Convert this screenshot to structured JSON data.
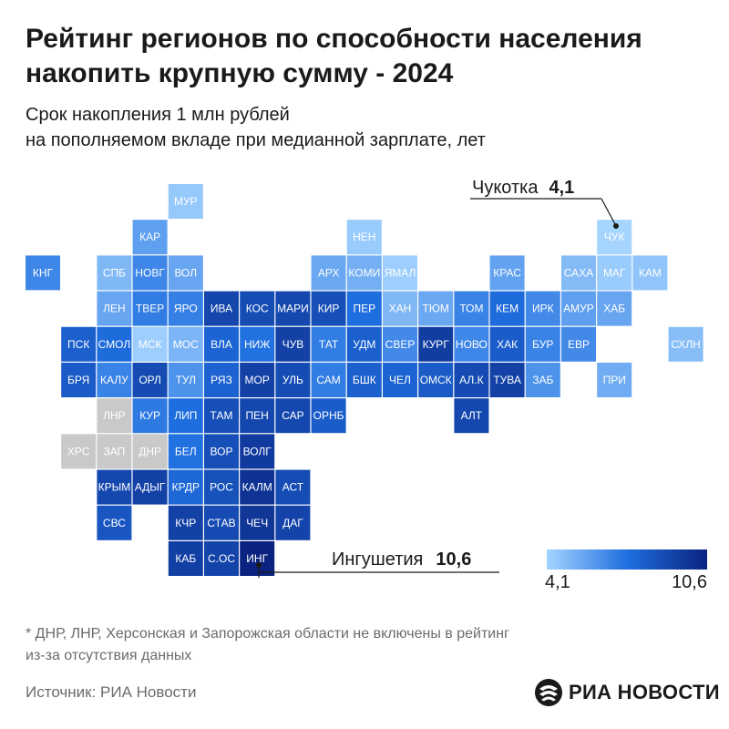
{
  "title": "Рейтинг регионов по способности населения накопить крупную сумму - 2024",
  "subtitle_line1": "Срок накопления 1 млн рублей",
  "subtitle_line2": "на пополняемом вкладе при медианной зарплате, лет",
  "footnote_line1": "* ДНР, ЛНР, Херсонская и Запорожская области не включены в рейтинг",
  "footnote_line2": "из-за отсутствия данных",
  "source": "Источник: РИА Новости",
  "logo": "РИА НОВОСТИ",
  "legend": {
    "min": "4,1",
    "max": "10,6"
  },
  "colors": {
    "low": "#a5d4ff",
    "mid": "#1f6fe0",
    "high": "#0b2380",
    "nodata": "#c9c9c9"
  },
  "chart_data": {
    "type": "heatmap",
    "value_range": [
      4.1,
      10.6
    ],
    "annotations": [
      {
        "label": "Чукотка",
        "value": "4,1",
        "region": "ЧУК"
      },
      {
        "label": "Ингушетия",
        "value": "10,6",
        "region": "ИНГ"
      }
    ],
    "regions": [
      {
        "label": "МУР",
        "col": 4,
        "row": 0,
        "value": 4.5
      },
      {
        "label": "КАР",
        "col": 3,
        "row": 1,
        "value": 5.8
      },
      {
        "label": "НЕН",
        "col": 9,
        "row": 1,
        "value": 4.4
      },
      {
        "label": "ЧУК",
        "col": 16,
        "row": 1,
        "value": 4.1
      },
      {
        "label": "КНГ",
        "col": 0,
        "row": 2,
        "value": 6.6
      },
      {
        "label": "СПБ",
        "col": 2,
        "row": 2,
        "value": 5.0
      },
      {
        "label": "НОВГ",
        "col": 3,
        "row": 2,
        "value": 6.6
      },
      {
        "label": "ВОЛ",
        "col": 4,
        "row": 2,
        "value": 5.6
      },
      {
        "label": "АРХ",
        "col": 8,
        "row": 2,
        "value": 5.5
      },
      {
        "label": "КОМИ",
        "col": 9,
        "row": 2,
        "value": 5.3
      },
      {
        "label": "ЯМАЛ",
        "col": 10,
        "row": 2,
        "value": 4.3
      },
      {
        "label": "КРАС",
        "col": 13,
        "row": 2,
        "value": 5.7
      },
      {
        "label": "САХА",
        "col": 15,
        "row": 2,
        "value": 4.9
      },
      {
        "label": "МАГ",
        "col": 16,
        "row": 2,
        "value": 4.4
      },
      {
        "label": "КАМ",
        "col": 17,
        "row": 2,
        "value": 4.6
      },
      {
        "label": "ЛЕН",
        "col": 2,
        "row": 3,
        "value": 5.6
      },
      {
        "label": "ТВЕР",
        "col": 3,
        "row": 3,
        "value": 6.9
      },
      {
        "label": "ЯРО",
        "col": 4,
        "row": 3,
        "value": 6.8
      },
      {
        "label": "ИВА",
        "col": 5,
        "row": 3,
        "value": 9.1
      },
      {
        "label": "КОС",
        "col": 6,
        "row": 3,
        "value": 8.8
      },
      {
        "label": "МАРИ",
        "col": 7,
        "row": 3,
        "value": 9.0
      },
      {
        "label": "КИР",
        "col": 8,
        "row": 3,
        "value": 8.7
      },
      {
        "label": "ПЕР",
        "col": 9,
        "row": 3,
        "value": 7.4
      },
      {
        "label": "ХАН",
        "col": 10,
        "row": 3,
        "value": 5.0
      },
      {
        "label": "ТЮМ",
        "col": 11,
        "row": 3,
        "value": 5.5
      },
      {
        "label": "ТОМ",
        "col": 12,
        "row": 3,
        "value": 6.7
      },
      {
        "label": "КЕМ",
        "col": 13,
        "row": 3,
        "value": 7.5
      },
      {
        "label": "ИРК",
        "col": 14,
        "row": 3,
        "value": 6.5
      },
      {
        "label": "АМУР",
        "col": 15,
        "row": 3,
        "value": 5.8
      },
      {
        "label": "ХАБ",
        "col": 16,
        "row": 3,
        "value": 5.6
      },
      {
        "label": "ПСК",
        "col": 1,
        "row": 4,
        "value": 8.0
      },
      {
        "label": "СМОЛ",
        "col": 2,
        "row": 4,
        "value": 7.5
      },
      {
        "label": "МСК",
        "col": 3,
        "row": 4,
        "value": 4.3
      },
      {
        "label": "МОС",
        "col": 4,
        "row": 4,
        "value": 5.1
      },
      {
        "label": "ВЛА",
        "col": 5,
        "row": 4,
        "value": 7.8
      },
      {
        "label": "НИЖ",
        "col": 6,
        "row": 4,
        "value": 7.3
      },
      {
        "label": "ЧУВ",
        "col": 7,
        "row": 4,
        "value": 9.3
      },
      {
        "label": "ТАТ",
        "col": 8,
        "row": 4,
        "value": 6.9
      },
      {
        "label": "УДМ",
        "col": 9,
        "row": 4,
        "value": 8.0
      },
      {
        "label": "СВЕР",
        "col": 10,
        "row": 4,
        "value": 6.5
      },
      {
        "label": "КУРГ",
        "col": 11,
        "row": 4,
        "value": 9.5
      },
      {
        "label": "НОВО",
        "col": 12,
        "row": 4,
        "value": 6.6
      },
      {
        "label": "ХАК",
        "col": 13,
        "row": 4,
        "value": 8.1
      },
      {
        "label": "БУР",
        "col": 14,
        "row": 4,
        "value": 6.7
      },
      {
        "label": "ЕВР",
        "col": 15,
        "row": 4,
        "value": 6.5
      },
      {
        "label": "СХЛН",
        "col": 18,
        "row": 4,
        "value": 4.8
      },
      {
        "label": "БРЯ",
        "col": 1,
        "row": 5,
        "value": 8.2
      },
      {
        "label": "КАЛУ",
        "col": 2,
        "row": 5,
        "value": 6.7
      },
      {
        "label": "ОРЛ",
        "col": 3,
        "row": 5,
        "value": 8.9
      },
      {
        "label": "ТУЛ",
        "col": 4,
        "row": 5,
        "value": 6.2
      },
      {
        "label": "РЯЗ",
        "col": 5,
        "row": 5,
        "value": 7.9
      },
      {
        "label": "МОР",
        "col": 6,
        "row": 5,
        "value": 9.3
      },
      {
        "label": "УЛЬ",
        "col": 7,
        "row": 5,
        "value": 8.8
      },
      {
        "label": "САМ",
        "col": 8,
        "row": 5,
        "value": 6.9
      },
      {
        "label": "БШК",
        "col": 9,
        "row": 5,
        "value": 8.0
      },
      {
        "label": "ЧЕЛ",
        "col": 10,
        "row": 5,
        "value": 7.8
      },
      {
        "label": "ОМСК",
        "col": 11,
        "row": 5,
        "value": 8.2
      },
      {
        "label": "АЛ.К",
        "col": 12,
        "row": 5,
        "value": 8.9
      },
      {
        "label": "ТУВА",
        "col": 13,
        "row": 5,
        "value": 9.3
      },
      {
        "label": "ЗАБ",
        "col": 14,
        "row": 5,
        "value": 6.2
      },
      {
        "label": "ПРИ",
        "col": 16,
        "row": 5,
        "value": 5.4
      },
      {
        "label": "ЛНР",
        "col": 2,
        "row": 6,
        "value": null
      },
      {
        "label": "КУР",
        "col": 3,
        "row": 6,
        "value": 7.0
      },
      {
        "label": "ЛИП",
        "col": 4,
        "row": 6,
        "value": 7.4
      },
      {
        "label": "ТАМ",
        "col": 5,
        "row": 6,
        "value": 8.7
      },
      {
        "label": "ПЕН",
        "col": 6,
        "row": 6,
        "value": 9.0
      },
      {
        "label": "САР",
        "col": 7,
        "row": 6,
        "value": 9.0
      },
      {
        "label": "ОРНБ",
        "col": 8,
        "row": 6,
        "value": 8.1
      },
      {
        "label": "АЛТ",
        "col": 12,
        "row": 6,
        "value": 9.0
      },
      {
        "label": "ХРС",
        "col": 1,
        "row": 7,
        "value": null
      },
      {
        "label": "ЗАП",
        "col": 2,
        "row": 7,
        "value": null
      },
      {
        "label": "ДНР",
        "col": 3,
        "row": 7,
        "value": null
      },
      {
        "label": "БЕЛ",
        "col": 4,
        "row": 7,
        "value": 7.3
      },
      {
        "label": "ВОР",
        "col": 5,
        "row": 7,
        "value": 8.7
      },
      {
        "label": "ВОЛГ",
        "col": 6,
        "row": 7,
        "value": 9.6
      },
      {
        "label": "КРЫМ",
        "col": 2,
        "row": 8,
        "value": 9.0
      },
      {
        "label": "АДЫГ",
        "col": 3,
        "row": 8,
        "value": 9.3
      },
      {
        "label": "КРДР",
        "col": 4,
        "row": 8,
        "value": 7.7
      },
      {
        "label": "РОС",
        "col": 5,
        "row": 8,
        "value": 8.6
      },
      {
        "label": "КАЛМ",
        "col": 6,
        "row": 8,
        "value": 9.9
      },
      {
        "label": "АСТ",
        "col": 7,
        "row": 8,
        "value": 8.8
      },
      {
        "label": "СВС",
        "col": 2,
        "row": 9,
        "value": 8.4
      },
      {
        "label": "КЧР",
        "col": 4,
        "row": 9,
        "value": 9.3
      },
      {
        "label": "СТАВ",
        "col": 5,
        "row": 9,
        "value": 8.9
      },
      {
        "label": "ЧЕЧ",
        "col": 6,
        "row": 9,
        "value": 9.8
      },
      {
        "label": "ДАГ",
        "col": 7,
        "row": 9,
        "value": 9.2
      },
      {
        "label": "КАБ",
        "col": 4,
        "row": 10,
        "value": 9.4
      },
      {
        "label": "С.ОС",
        "col": 5,
        "row": 10,
        "value": 9.2
      },
      {
        "label": "ИНГ",
        "col": 6,
        "row": 10,
        "value": 10.6
      }
    ]
  }
}
